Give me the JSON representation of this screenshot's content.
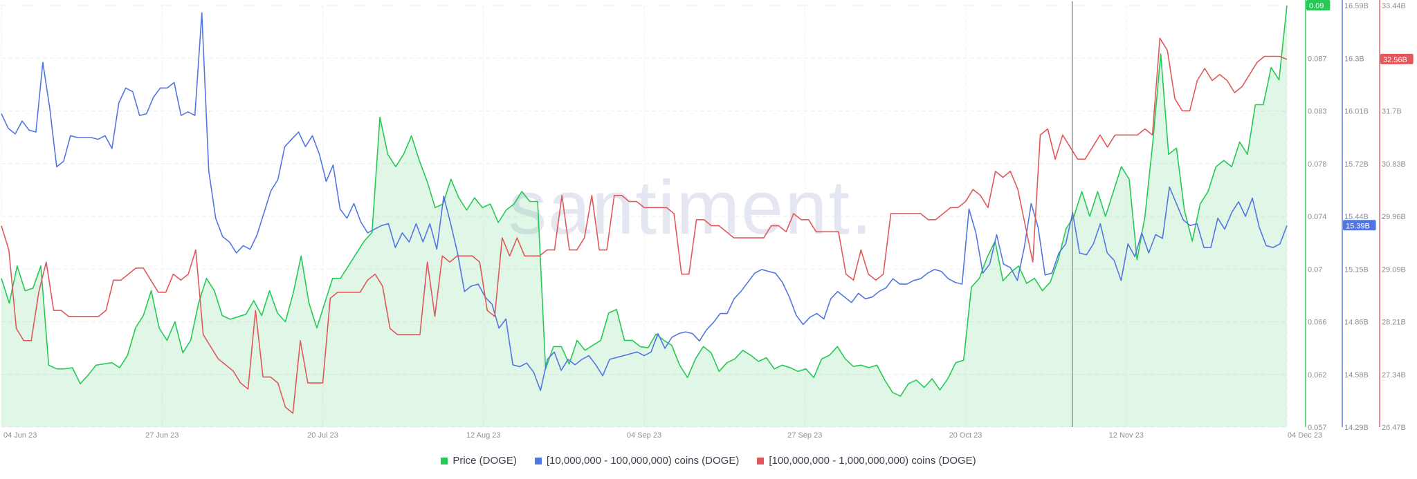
{
  "watermark": "santiment.",
  "chart_data": {
    "type": "line",
    "x_ticks": [
      "04 Jun 23",
      "27 Jun 23",
      "20 Jul 23",
      "12 Aug 23",
      "04 Sep 23",
      "27 Sep 23",
      "20 Oct 23",
      "12 Nov 23",
      "04 Dec 23"
    ],
    "x_start": "2023-06-04",
    "x_end": "2023-12-04",
    "axes": [
      {
        "id": "price",
        "ticks": [
          "0.091",
          "0.087",
          "0.083",
          "0.078",
          "0.074",
          "0.07",
          "0.066",
          "0.062",
          "0.057"
        ],
        "range": [
          0.057,
          0.091
        ],
        "color": "#26c953",
        "current_label": "0.09"
      },
      {
        "id": "holders_10m_100m",
        "ticks": [
          "16.59B",
          "16.3B",
          "16.01B",
          "15.72B",
          "15.44B",
          "15.15B",
          "14.86B",
          "14.58B",
          "14.29B"
        ],
        "range": [
          14.29,
          16.59
        ],
        "color": "#5275e1",
        "current_label": "15.39B"
      },
      {
        "id": "holders_100m_1b",
        "ticks": [
          "33.44B",
          "32.57B",
          "31.7B",
          "30.83B",
          "29.96B",
          "29.09B",
          "28.21B",
          "27.34B",
          "26.47B"
        ],
        "range": [
          26.47,
          33.44
        ],
        "color": "#e0585a",
        "current_label": "32.56B"
      }
    ],
    "series": [
      {
        "name": "Price (DOGE)",
        "axis": "price",
        "color": "#26c953",
        "area": true,
        "y": [
          0.069,
          0.067,
          0.07,
          0.068,
          0.0682,
          0.07,
          0.062,
          0.0617,
          0.0617,
          0.0618,
          0.0605,
          0.0612,
          0.062,
          0.0621,
          0.0622,
          0.0618,
          0.0628,
          0.065,
          0.066,
          0.068,
          0.065,
          0.064,
          0.0655,
          0.063,
          0.064,
          0.067,
          0.069,
          0.068,
          0.066,
          0.0657,
          0.0659,
          0.0661,
          0.0672,
          0.066,
          0.068,
          0.0662,
          0.0655,
          0.0678,
          0.0708,
          0.067,
          0.065,
          0.067,
          0.069,
          0.069,
          0.07,
          0.071,
          0.072,
          0.0727,
          0.082,
          0.079,
          0.078,
          0.079,
          0.0805,
          0.0785,
          0.0768,
          0.0747,
          0.075,
          0.077,
          0.0755,
          0.0745,
          0.0755,
          0.0747,
          0.075,
          0.0735,
          0.0745,
          0.075,
          0.076,
          0.0752,
          0.0752,
          0.0617,
          0.0635,
          0.0635,
          0.0621,
          0.064,
          0.0632,
          0.0636,
          0.064,
          0.0662,
          0.0665,
          0.064,
          0.064,
          0.0635,
          0.0634,
          0.0645,
          0.064,
          0.0636,
          0.062,
          0.061,
          0.0625,
          0.0635,
          0.063,
          0.0615,
          0.0622,
          0.0625,
          0.0632,
          0.0628,
          0.0623,
          0.0626,
          0.0617,
          0.062,
          0.0618,
          0.0615,
          0.0617,
          0.061,
          0.0625,
          0.0628,
          0.0635,
          0.0625,
          0.0619,
          0.062,
          0.0618,
          0.062,
          0.0608,
          0.0598,
          0.0595,
          0.0605,
          0.0608,
          0.0602,
          0.0609,
          0.06,
          0.0609,
          0.0622,
          0.0624,
          0.0683,
          0.069,
          0.0707,
          0.072,
          0.0688,
          0.0695,
          0.07,
          0.0686,
          0.069,
          0.068,
          0.0687,
          0.0705,
          0.073,
          0.074,
          0.076,
          0.074,
          0.076,
          0.074,
          0.076,
          0.078,
          0.077,
          0.0705,
          0.074,
          0.08,
          0.0871,
          0.079,
          0.0795,
          0.0745,
          0.072,
          0.075,
          0.076,
          0.078,
          0.0785,
          0.078,
          0.08,
          0.079,
          0.083,
          0.083,
          0.086,
          0.085,
          0.091
        ]
      },
      {
        "name": "[10,000,000 - 100,000,000) coins (DOGE)",
        "axis": "holders_10m_100m",
        "color": "#5275e1",
        "y": [
          16.0,
          15.92,
          15.89,
          15.96,
          15.91,
          15.9,
          16.28,
          16.03,
          15.71,
          15.74,
          15.88,
          15.87,
          15.87,
          15.87,
          15.86,
          15.88,
          15.81,
          16.06,
          16.14,
          16.12,
          15.99,
          16.0,
          16.09,
          16.14,
          16.14,
          16.17,
          15.99,
          16.01,
          15.99,
          16.55,
          15.69,
          15.43,
          15.33,
          15.3,
          15.24,
          15.28,
          15.26,
          15.34,
          15.46,
          15.58,
          15.64,
          15.82,
          15.86,
          15.9,
          15.82,
          15.88,
          15.78,
          15.63,
          15.72,
          15.48,
          15.43,
          15.51,
          15.41,
          15.35,
          15.37,
          15.39,
          15.4,
          15.27,
          15.35,
          15.3,
          15.4,
          15.3,
          15.4,
          15.26,
          15.55,
          15.4,
          15.24,
          15.03,
          15.06,
          15.07,
          15.0,
          14.96,
          14.83,
          14.88,
          14.63,
          14.62,
          14.64,
          14.59,
          14.49,
          14.66,
          14.7,
          14.6,
          14.66,
          14.63,
          14.66,
          14.68,
          14.63,
          14.57,
          14.66,
          14.67,
          14.68,
          14.69,
          14.7,
          14.68,
          14.7,
          14.8,
          14.72,
          14.78,
          14.8,
          14.81,
          14.8,
          14.76,
          14.82,
          14.86,
          14.91,
          14.91,
          14.99,
          15.03,
          15.08,
          15.13,
          15.15,
          15.14,
          15.13,
          15.08,
          15.0,
          14.9,
          14.85,
          14.89,
          14.91,
          14.88,
          14.99,
          15.03,
          15.0,
          14.97,
          15.02,
          14.99,
          15.0,
          15.03,
          15.05,
          15.1,
          15.07,
          15.07,
          15.09,
          15.1,
          15.13,
          15.15,
          15.14,
          15.1,
          15.08,
          15.07,
          15.48,
          15.35,
          15.13,
          15.18,
          15.34,
          15.18,
          15.16,
          15.09,
          15.27,
          15.51,
          15.38,
          15.12,
          15.13,
          15.24,
          15.29,
          15.46,
          15.24,
          15.23,
          15.29,
          15.4,
          15.24,
          15.2,
          15.09,
          15.29,
          15.22,
          15.35,
          15.24,
          15.34,
          15.32,
          15.6,
          15.51,
          15.42,
          15.39,
          15.4,
          15.27,
          15.27,
          15.43,
          15.37,
          15.46,
          15.52,
          15.44,
          15.54,
          15.38,
          15.28,
          15.27,
          15.29,
          15.39
        ]
      },
      {
        "name": "[100,000,000 - 1,000,000,000) coins (DOGE)",
        "axis": "holders_100m_1b",
        "color": "#e0585a",
        "y": [
          29.8,
          29.4,
          28.1,
          27.9,
          27.9,
          28.7,
          29.2,
          28.4,
          28.4,
          28.3,
          28.3,
          28.3,
          28.3,
          28.3,
          28.4,
          28.9,
          28.9,
          29.0,
          29.1,
          29.1,
          28.9,
          28.7,
          28.7,
          29.0,
          28.9,
          29.0,
          29.4,
          28.0,
          27.8,
          27.6,
          27.5,
          27.4,
          27.2,
          27.1,
          28.4,
          27.3,
          27.3,
          27.2,
          26.8,
          26.7,
          27.9,
          27.2,
          27.2,
          27.2,
          28.6,
          28.7,
          28.7,
          28.7,
          28.7,
          28.9,
          29.0,
          28.8,
          28.1,
          28.0,
          28.0,
          28.0,
          28.0,
          29.2,
          28.3,
          29.3,
          29.2,
          29.3,
          29.3,
          29.3,
          29.2,
          28.4,
          28.3,
          29.6,
          29.3,
          29.6,
          29.3,
          29.3,
          29.3,
          29.4,
          29.4,
          30.3,
          29.4,
          29.4,
          29.6,
          30.3,
          29.4,
          29.4,
          30.3,
          30.3,
          30.2,
          30.2,
          30.1,
          30.1,
          30.1,
          30.1,
          30.0,
          29.0,
          29.0,
          29.9,
          29.9,
          29.8,
          29.8,
          29.7,
          29.6,
          29.6,
          29.6,
          29.6,
          29.6,
          29.8,
          29.8,
          29.7,
          30.0,
          29.9,
          29.9,
          29.7,
          29.7,
          29.7,
          29.7,
          29.0,
          28.9,
          29.4,
          29.0,
          28.9,
          29.0,
          30.0,
          30.0,
          30.0,
          30.0,
          30.0,
          29.9,
          29.9,
          30.0,
          30.1,
          30.1,
          30.2,
          30.4,
          30.3,
          30.1,
          30.7,
          30.6,
          30.7,
          30.4,
          29.8,
          29.2,
          31.3,
          31.4,
          30.9,
          31.3,
          31.1,
          30.9,
          30.9,
          31.1,
          31.3,
          31.1,
          31.3,
          31.3,
          31.3,
          31.3,
          31.4,
          31.3,
          32.9,
          32.7,
          31.9,
          31.7,
          31.7,
          32.2,
          32.4,
          32.2,
          32.3,
          32.2,
          32.0,
          32.1,
          32.3,
          32.5,
          32.6,
          32.6,
          32.6,
          32.55
        ]
      }
    ],
    "crosshair_fraction": 0.833
  },
  "legend": [
    {
      "label": "Price (DOGE)",
      "color": "#26c953"
    },
    {
      "label": "[10,000,000 - 100,000,000) coins (DOGE)",
      "color": "#5275e1"
    },
    {
      "label": "[100,000,000 - 1,000,000,000) coins (DOGE)",
      "color": "#e0585a"
    }
  ]
}
